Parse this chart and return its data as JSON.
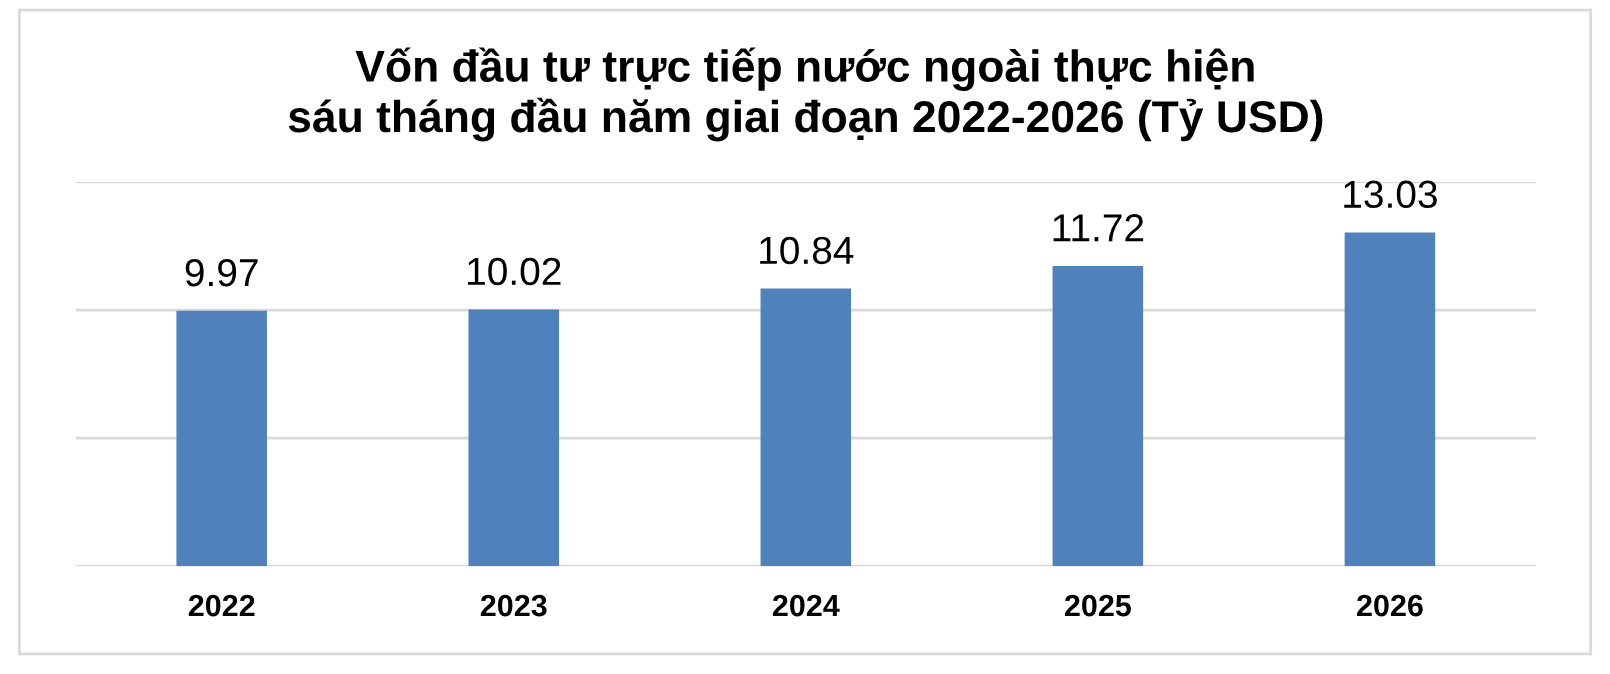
{
  "chart_data": {
    "type": "bar",
    "title": "Vốn đầu tư trực tiếp nước ngoài thực hiện\nsáu tháng đầu năm giai đoạn 2022-2026 (Tỷ USD)",
    "categories": [
      "2022",
      "2023",
      "2024",
      "2025",
      "2026"
    ],
    "values": [
      9.97,
      10.02,
      10.84,
      11.72,
      13.03
    ],
    "color": "#4f81bd",
    "ylim": [
      0,
      15
    ],
    "yticks": [
      {
        "value": 0,
        "label": null
      },
      {
        "value": 5,
        "label": null
      },
      {
        "value": 10,
        "label": null
      },
      {
        "value": 15,
        "label": null
      }
    ],
    "grid": "y",
    "data_labels": true,
    "tick_labels": "x"
  }
}
